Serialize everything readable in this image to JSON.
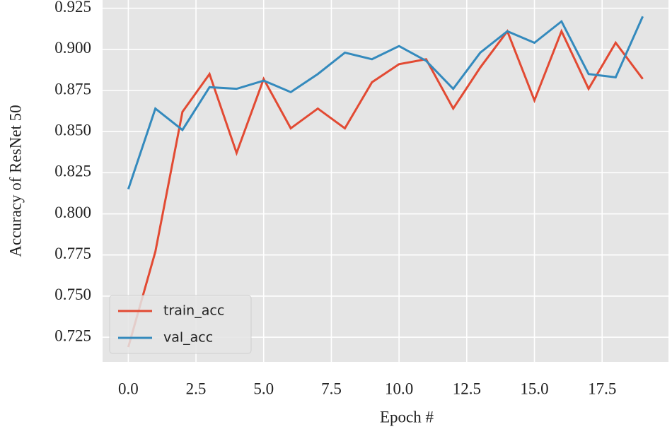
{
  "chart_data": {
    "type": "line",
    "xlabel": "Epoch #",
    "ylabel": "Accuracy of ResNet 50",
    "x": [
      0,
      1,
      2,
      3,
      4,
      5,
      6,
      7,
      8,
      9,
      10,
      11,
      12,
      13,
      14,
      15,
      16,
      17,
      18,
      19
    ],
    "series": [
      {
        "name": "train_acc",
        "color": "#e24a33",
        "values": [
          0.719,
          0.777,
          0.862,
          0.885,
          0.837,
          0.882,
          0.852,
          0.864,
          0.852,
          0.88,
          0.891,
          0.894,
          0.864,
          0.889,
          0.911,
          0.869,
          0.911,
          0.876,
          0.904,
          0.882
        ]
      },
      {
        "name": "val_acc",
        "color": "#348abd",
        "values": [
          0.815,
          0.864,
          0.851,
          0.877,
          0.876,
          0.881,
          0.874,
          0.885,
          0.898,
          0.894,
          0.902,
          0.893,
          0.876,
          0.898,
          0.911,
          0.904,
          0.917,
          0.885,
          0.883,
          0.92
        ]
      }
    ],
    "xlim": [
      -0.95,
      19.95
    ],
    "ylim": [
      0.71,
      0.93
    ],
    "xticks": [
      {
        "value": 0,
        "label": "0.0"
      },
      2.5,
      {
        "value": 5,
        "label": "5.0"
      },
      7.5,
      {
        "value": 10,
        "label": "10.0"
      },
      12.5,
      {
        "value": 15,
        "label": "15.0"
      },
      17.5
    ],
    "yticks": [
      0.725,
      {
        "value": 0.75,
        "label": "0.750"
      },
      0.775,
      {
        "value": 0.8,
        "label": "0.800"
      },
      0.825,
      {
        "value": 0.85,
        "label": "0.850"
      },
      0.875,
      {
        "value": 0.9,
        "label": "0.900"
      },
      0.925
    ],
    "grid": true,
    "legend": "lower left"
  }
}
